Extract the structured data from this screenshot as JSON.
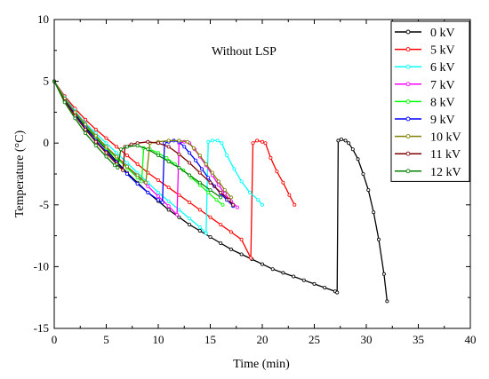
{
  "chart_data": {
    "type": "line",
    "title": "",
    "xlabel": "Time (min)",
    "ylabel": "Temperature (°C)",
    "xlim": [
      0,
      40
    ],
    "ylim": [
      -15,
      10
    ],
    "x_ticks": [
      "0",
      "5",
      "10",
      "15",
      "20",
      "25",
      "30",
      "35",
      "40"
    ],
    "y_ticks": [
      "-15",
      "-10",
      "-5",
      "0",
      "5",
      "10"
    ],
    "grid": false,
    "legend_position": "top-right",
    "annotation": "Without LSP",
    "series": [
      {
        "name": "0 kV",
        "color": "#000000",
        "x": [
          0,
          1,
          2,
          3,
          4,
          5,
          6,
          7,
          8,
          9,
          10,
          11,
          12,
          13,
          14,
          15,
          16,
          17,
          18,
          19,
          20,
          21,
          22,
          23,
          24,
          25,
          26,
          27,
          27.2,
          27.3,
          27.6,
          28,
          28.3,
          28.7,
          29.2,
          29.7,
          30.2,
          30.7,
          31.2,
          31.7,
          32
        ],
        "y": [
          5,
          3.6,
          2.4,
          1.3,
          0.4,
          -0.5,
          -1.5,
          -2.4,
          -3.2,
          -4,
          -4.7,
          -5.4,
          -6,
          -6.6,
          -7.1,
          -7.6,
          -8.1,
          -8.6,
          -9,
          -9.4,
          -9.8,
          -10.2,
          -10.5,
          -10.8,
          -11.1,
          -11.4,
          -11.7,
          -12,
          -12.1,
          0.2,
          0.3,
          0.2,
          0,
          -0.5,
          -1.3,
          -2.5,
          -3.8,
          -5.6,
          -7.8,
          -10.6,
          -12.8
        ]
      },
      {
        "name": "5 kV",
        "color": "#ff0000",
        "x": [
          0,
          1,
          2,
          3,
          4,
          5,
          6,
          7,
          8,
          9,
          10,
          11,
          12,
          13,
          14,
          15,
          16,
          17,
          18,
          18.9,
          19.1,
          19.5,
          20,
          20.3,
          20.8,
          21.4,
          22,
          22.6,
          23.1
        ],
        "y": [
          5,
          3.8,
          2.8,
          1.9,
          1.1,
          0.4,
          -0.3,
          -1,
          -1.7,
          -2.4,
          -3,
          -3.6,
          -4.2,
          -4.8,
          -5.4,
          -6,
          -6.6,
          -7.2,
          -7.8,
          -9.3,
          0,
          0.2,
          0.1,
          0,
          -1.2,
          -2.3,
          -3.2,
          -4.2,
          -5
        ]
      },
      {
        "name": "6 kV",
        "color": "#00ffff",
        "x": [
          0,
          1,
          2,
          3,
          4,
          5,
          6,
          7,
          8,
          9,
          10,
          11,
          12,
          13,
          14,
          14.6,
          14.8,
          15.2,
          15.7,
          16.1,
          16.6,
          17.3,
          18,
          18.8,
          19.6,
          20
        ],
        "y": [
          5,
          3.7,
          2.6,
          1.6,
          0.8,
          0,
          -0.8,
          -1.6,
          -2.4,
          -3.2,
          -4,
          -4.7,
          -5.4,
          -6.1,
          -6.8,
          -7.3,
          0.1,
          0.2,
          0.2,
          0,
          -1,
          -2.1,
          -3.1,
          -4,
          -4.6,
          -5
        ]
      },
      {
        "name": "7 kV",
        "color": "#ff00ff",
        "x": [
          0,
          1,
          2,
          3,
          4,
          5,
          6,
          7,
          8,
          9,
          10,
          11,
          11.8,
          12,
          12.5,
          13,
          13.5,
          14,
          14.6,
          15.2,
          15.8,
          16.4,
          17,
          17.6
        ],
        "y": [
          5,
          3.6,
          2.5,
          1.5,
          0.6,
          -0.3,
          -1.1,
          -1.9,
          -2.7,
          -3.5,
          -4.3,
          -5.1,
          -5.8,
          0,
          0.1,
          0,
          -0.5,
          -1.1,
          -1.8,
          -2.6,
          -3.4,
          -4.1,
          -4.7,
          -5.2
        ]
      },
      {
        "name": "8 kV",
        "color": "#00ff00",
        "x": [
          0,
          1,
          2,
          3,
          4,
          5,
          6,
          7,
          8,
          8.4,
          8.6,
          9.2,
          10,
          10.8,
          11.6,
          12.4,
          13.2,
          14,
          14.8,
          15.6,
          16.2
        ],
        "y": [
          5,
          3.6,
          2.5,
          1.4,
          0.5,
          -0.4,
          -1.2,
          -2,
          -2.8,
          -3.1,
          -0.4,
          -0.5,
          -0.8,
          -1.2,
          -1.7,
          -2.2,
          -2.8,
          -3.4,
          -4,
          -4.6,
          -5
        ]
      },
      {
        "name": "9 kV",
        "color": "#0000ff",
        "x": [
          0,
          1,
          2,
          3,
          4,
          5,
          6,
          7,
          8,
          9,
          10,
          10.4,
          10.6,
          11,
          11.5,
          12,
          12.5,
          13,
          13.6,
          14.2,
          14.8,
          15.4,
          16,
          16.6,
          17.2
        ],
        "y": [
          5,
          3.5,
          2.3,
          1.2,
          0.2,
          -0.7,
          -1.6,
          -2.5,
          -3.3,
          -4,
          -4.6,
          -4.8,
          0,
          0.1,
          0.2,
          0.1,
          -0.3,
          -0.8,
          -1.4,
          -2.1,
          -2.8,
          -3.5,
          -4.1,
          -4.6,
          -5.1
        ]
      },
      {
        "name": "10 kV",
        "color": "#808000",
        "x": [
          0,
          1,
          2,
          3,
          4,
          5,
          6,
          7,
          8,
          8.8,
          9.2,
          10,
          11,
          12,
          12.8,
          13.4,
          14,
          14.6,
          15.2,
          15.8,
          16.4,
          17
        ],
        "y": [
          5,
          3.6,
          2.5,
          1.5,
          0.6,
          -0.3,
          -1.1,
          -1.9,
          -2.6,
          -3.2,
          0,
          0.1,
          0.2,
          0.2,
          0.1,
          -0.4,
          -1,
          -1.7,
          -2.4,
          -3.1,
          -3.8,
          -4.4
        ]
      },
      {
        "name": "11 kV",
        "color": "#800000",
        "x": [
          0,
          1,
          2,
          3,
          4,
          5,
          6,
          6.6,
          6.8,
          7.4,
          8,
          9,
          10,
          11,
          12,
          13,
          14,
          15,
          16,
          16.8,
          17.2
        ],
        "y": [
          5,
          3.4,
          2.2,
          1.1,
          0.1,
          -0.8,
          -1.7,
          -2.2,
          -0.3,
          -0.1,
          0,
          0.1,
          0,
          -0.3,
          -0.9,
          -1.6,
          -2.4,
          -3.2,
          -4,
          -4.6,
          -5
        ]
      },
      {
        "name": "12 kV",
        "color": "#008000",
        "x": [
          0,
          1,
          2,
          3,
          4,
          5,
          5.8,
          6.1,
          6.4,
          7,
          8,
          9,
          10,
          11,
          12,
          13,
          14,
          15,
          16
        ],
        "y": [
          5,
          3.3,
          2,
          0.8,
          -0.2,
          -1.1,
          -1.8,
          -2,
          -0.5,
          -0.3,
          -0.2,
          -0.5,
          -1,
          -1.5,
          -2,
          -2.6,
          -3.2,
          -3.8,
          -4.4
        ]
      }
    ]
  }
}
